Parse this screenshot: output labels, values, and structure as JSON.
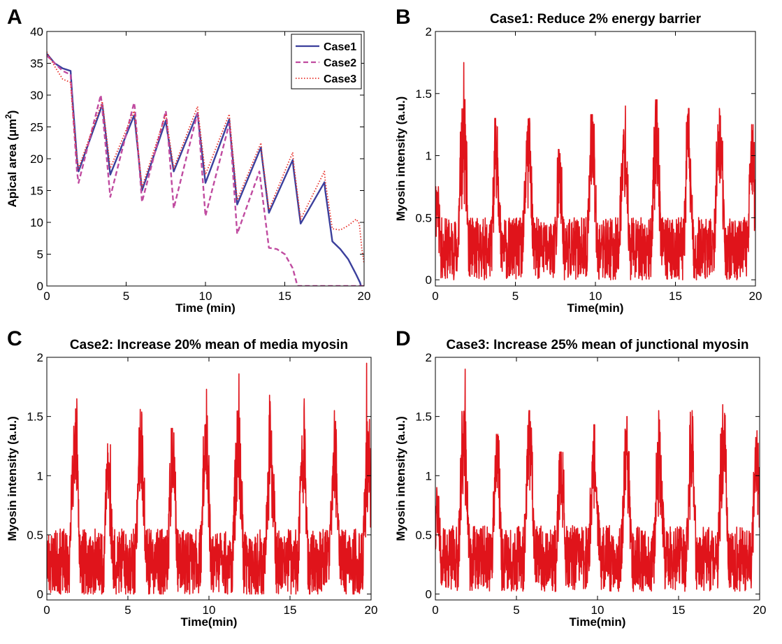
{
  "chart_data": [
    {
      "panel": "A",
      "type": "line",
      "title": "",
      "xlabel": "Time (min)",
      "ylabel": "Apical area (μm",
      "ylabel_sup": "2",
      "ylabel_end": ")",
      "xlim": [
        0,
        20
      ],
      "ylim": [
        0,
        40
      ],
      "xticks": [
        "0",
        "5",
        "10",
        "15",
        "20"
      ],
      "yticks": [
        "0",
        "5",
        "10",
        "15",
        "20",
        "25",
        "30",
        "35",
        "40"
      ],
      "legend_position": "top-right",
      "series": [
        {
          "name": "Case1",
          "color": "#3b3f9c",
          "style": "solid",
          "x": [
            0,
            0.5,
            1.0,
            1.5,
            1.6,
            1.9,
            2.0,
            3.5,
            3.55,
            4.0,
            5.5,
            5.55,
            6.0,
            7.5,
            7.55,
            8.0,
            9.5,
            9.55,
            10.0,
            11.5,
            11.55,
            12.0,
            13.5,
            13.55,
            14.0,
            15.5,
            15.55,
            16.0,
            17.5,
            17.55,
            18.0,
            18.5,
            19.0,
            19.5,
            19.75,
            19.8
          ],
          "y": [
            36.5,
            35.0,
            34.2,
            33.8,
            30.0,
            20.0,
            18.0,
            28.5,
            27.5,
            17.5,
            26.8,
            26.0,
            15.0,
            26.0,
            25.0,
            18.0,
            27.2,
            26.0,
            16.2,
            26.2,
            24.5,
            12.8,
            21.8,
            20.5,
            11.5,
            19.8,
            18.5,
            9.8,
            16.3,
            15.0,
            7.0,
            5.8,
            4.2,
            1.8,
            0.5,
            0
          ]
        },
        {
          "name": "Case2",
          "color": "#c04ba0",
          "style": "dashed",
          "x": [
            0,
            0.5,
            1.0,
            1.5,
            1.6,
            1.9,
            2.0,
            3.4,
            3.45,
            4.0,
            5.5,
            5.55,
            6.0,
            7.5,
            7.55,
            8.0,
            9.5,
            9.55,
            10.0,
            11.5,
            11.55,
            12.0,
            13.4,
            13.45,
            14.0,
            14.5,
            15.0,
            15.5,
            15.8,
            16.0,
            20.0
          ],
          "y": [
            36.2,
            35.0,
            33.8,
            33.2,
            29.0,
            18.0,
            16.2,
            30.0,
            29.0,
            14.0,
            28.8,
            28.0,
            13.2,
            27.5,
            26.5,
            12.2,
            27.2,
            26.0,
            11.0,
            25.5,
            24.5,
            8.2,
            18.0,
            17.0,
            6.0,
            5.8,
            5.0,
            2.8,
            0,
            0,
            0
          ]
        },
        {
          "name": "Case3",
          "color": "#e8302a",
          "style": "dotted",
          "x": [
            0,
            0.5,
            1.0,
            1.5,
            1.6,
            1.9,
            2.0,
            3.5,
            3.55,
            4.0,
            5.5,
            5.55,
            6.0,
            7.5,
            7.55,
            8.0,
            9.5,
            9.55,
            10.0,
            11.5,
            11.55,
            12.0,
            13.5,
            13.55,
            14.0,
            15.5,
            15.55,
            16.0,
            17.5,
            17.55,
            18.0,
            18.5,
            19.0,
            19.5,
            19.7,
            19.85,
            20.0
          ],
          "y": [
            36.8,
            34.5,
            32.5,
            32.0,
            28.5,
            20.0,
            18.5,
            29.0,
            28.0,
            18.5,
            27.5,
            26.5,
            15.5,
            27.0,
            26.0,
            18.5,
            28.2,
            27.0,
            17.5,
            27.0,
            25.5,
            13.5,
            22.5,
            21.0,
            12.0,
            21.0,
            19.5,
            10.5,
            18.0,
            16.5,
            9.0,
            8.8,
            9.5,
            10.5,
            9.8,
            6.0,
            3.5
          ]
        }
      ]
    },
    {
      "panel": "B",
      "type": "line",
      "title": "Case1: Reduce 2% energy barrier",
      "xlabel": "Time(min)",
      "ylabel": "Myosin intensity (a.u.)",
      "xlim": [
        0,
        20
      ],
      "ylim": [
        -0.05,
        2
      ],
      "xticks": [
        "0",
        "5",
        "10",
        "15",
        "20"
      ],
      "yticks": [
        "0",
        "0.5",
        "1",
        "1.5",
        "2"
      ],
      "series": [
        {
          "color": "#e0141b",
          "baseline": 0.25,
          "noise": 0.18,
          "seed": 11,
          "pulses": [
            {
              "t": 0.1,
              "w": 0.25,
              "h": 0.4,
              "peak": 0.75
            },
            {
              "t": 1.75,
              "w": 0.35,
              "h": 0.95,
              "peak": 1.75
            },
            {
              "t": 3.8,
              "w": 0.3,
              "h": 0.85,
              "peak": 1.3
            },
            {
              "t": 5.8,
              "w": 0.35,
              "h": 0.8,
              "peak": 1.3
            },
            {
              "t": 7.75,
              "w": 0.3,
              "h": 0.6,
              "peak": 1.05
            },
            {
              "t": 9.8,
              "w": 0.35,
              "h": 0.85,
              "peak": 1.33
            },
            {
              "t": 11.8,
              "w": 0.35,
              "h": 0.8,
              "peak": 1.4
            },
            {
              "t": 13.8,
              "w": 0.35,
              "h": 0.85,
              "peak": 1.45
            },
            {
              "t": 15.8,
              "w": 0.3,
              "h": 0.85,
              "peak": 1.38
            },
            {
              "t": 17.75,
              "w": 0.35,
              "h": 0.85,
              "peak": 1.38
            },
            {
              "t": 19.8,
              "w": 0.3,
              "h": 0.8,
              "peak": 1.25
            }
          ]
        }
      ]
    },
    {
      "panel": "C",
      "type": "line",
      "title": "Case2: Increase 20% mean of media myosin",
      "xlabel": "Time(min)",
      "ylabel": "Myosin intensity (a.u.)",
      "xlim": [
        0,
        20
      ],
      "ylim": [
        -0.05,
        2
      ],
      "xticks": [
        "0",
        "5",
        "10",
        "15",
        "20"
      ],
      "yticks": [
        "0",
        "0.5",
        "1",
        "1.5",
        "2"
      ],
      "series": [
        {
          "color": "#e0141b",
          "baseline": 0.27,
          "noise": 0.2,
          "seed": 23,
          "pulses": [
            {
              "t": 1.75,
              "w": 0.35,
              "h": 1.0,
              "peak": 1.65
            },
            {
              "t": 3.8,
              "w": 0.3,
              "h": 0.8,
              "peak": 1.27
            },
            {
              "t": 5.8,
              "w": 0.35,
              "h": 0.9,
              "peak": 1.56
            },
            {
              "t": 7.75,
              "w": 0.3,
              "h": 0.85,
              "peak": 1.4
            },
            {
              "t": 9.8,
              "w": 0.35,
              "h": 0.95,
              "peak": 1.73
            },
            {
              "t": 11.8,
              "w": 0.35,
              "h": 1.0,
              "peak": 1.86
            },
            {
              "t": 13.8,
              "w": 0.35,
              "h": 0.95,
              "peak": 1.68
            },
            {
              "t": 15.8,
              "w": 0.3,
              "h": 0.95,
              "peak": 1.65
            },
            {
              "t": 17.75,
              "w": 0.35,
              "h": 0.9,
              "peak": 1.55
            },
            {
              "t": 19.8,
              "w": 0.3,
              "h": 1.0,
              "peak": 1.95
            }
          ]
        }
      ]
    },
    {
      "panel": "D",
      "type": "line",
      "title": "Case3: Increase 25% mean of junctional myosin",
      "xlabel": "Time(min)",
      "ylabel": "Myosin intensity (a.u.)",
      "xlim": [
        0,
        20
      ],
      "ylim": [
        -0.05,
        2
      ],
      "xticks": [
        "0",
        "5",
        "10",
        "15",
        "20"
      ],
      "yticks": [
        "0",
        "0.5",
        "1",
        "1.5",
        "2"
      ],
      "series": [
        {
          "color": "#e0141b",
          "baseline": 0.3,
          "noise": 0.2,
          "seed": 37,
          "pulses": [
            {
              "t": 0.1,
              "w": 0.25,
              "h": 0.5,
              "peak": 0.9
            },
            {
              "t": 1.75,
              "w": 0.35,
              "h": 1.0,
              "peak": 1.9
            },
            {
              "t": 3.8,
              "w": 0.3,
              "h": 0.85,
              "peak": 1.35
            },
            {
              "t": 5.8,
              "w": 0.35,
              "h": 0.9,
              "peak": 1.55
            },
            {
              "t": 7.75,
              "w": 0.3,
              "h": 0.75,
              "peak": 1.2
            },
            {
              "t": 9.8,
              "w": 0.35,
              "h": 0.9,
              "peak": 1.43
            },
            {
              "t": 11.8,
              "w": 0.35,
              "h": 0.9,
              "peak": 1.5
            },
            {
              "t": 13.8,
              "w": 0.35,
              "h": 0.9,
              "peak": 1.55
            },
            {
              "t": 15.8,
              "w": 0.3,
              "h": 0.9,
              "peak": 1.55
            },
            {
              "t": 17.75,
              "w": 0.35,
              "h": 0.95,
              "peak": 1.6
            },
            {
              "t": 19.8,
              "w": 0.3,
              "h": 0.85,
              "peak": 1.38
            }
          ]
        }
      ]
    }
  ]
}
